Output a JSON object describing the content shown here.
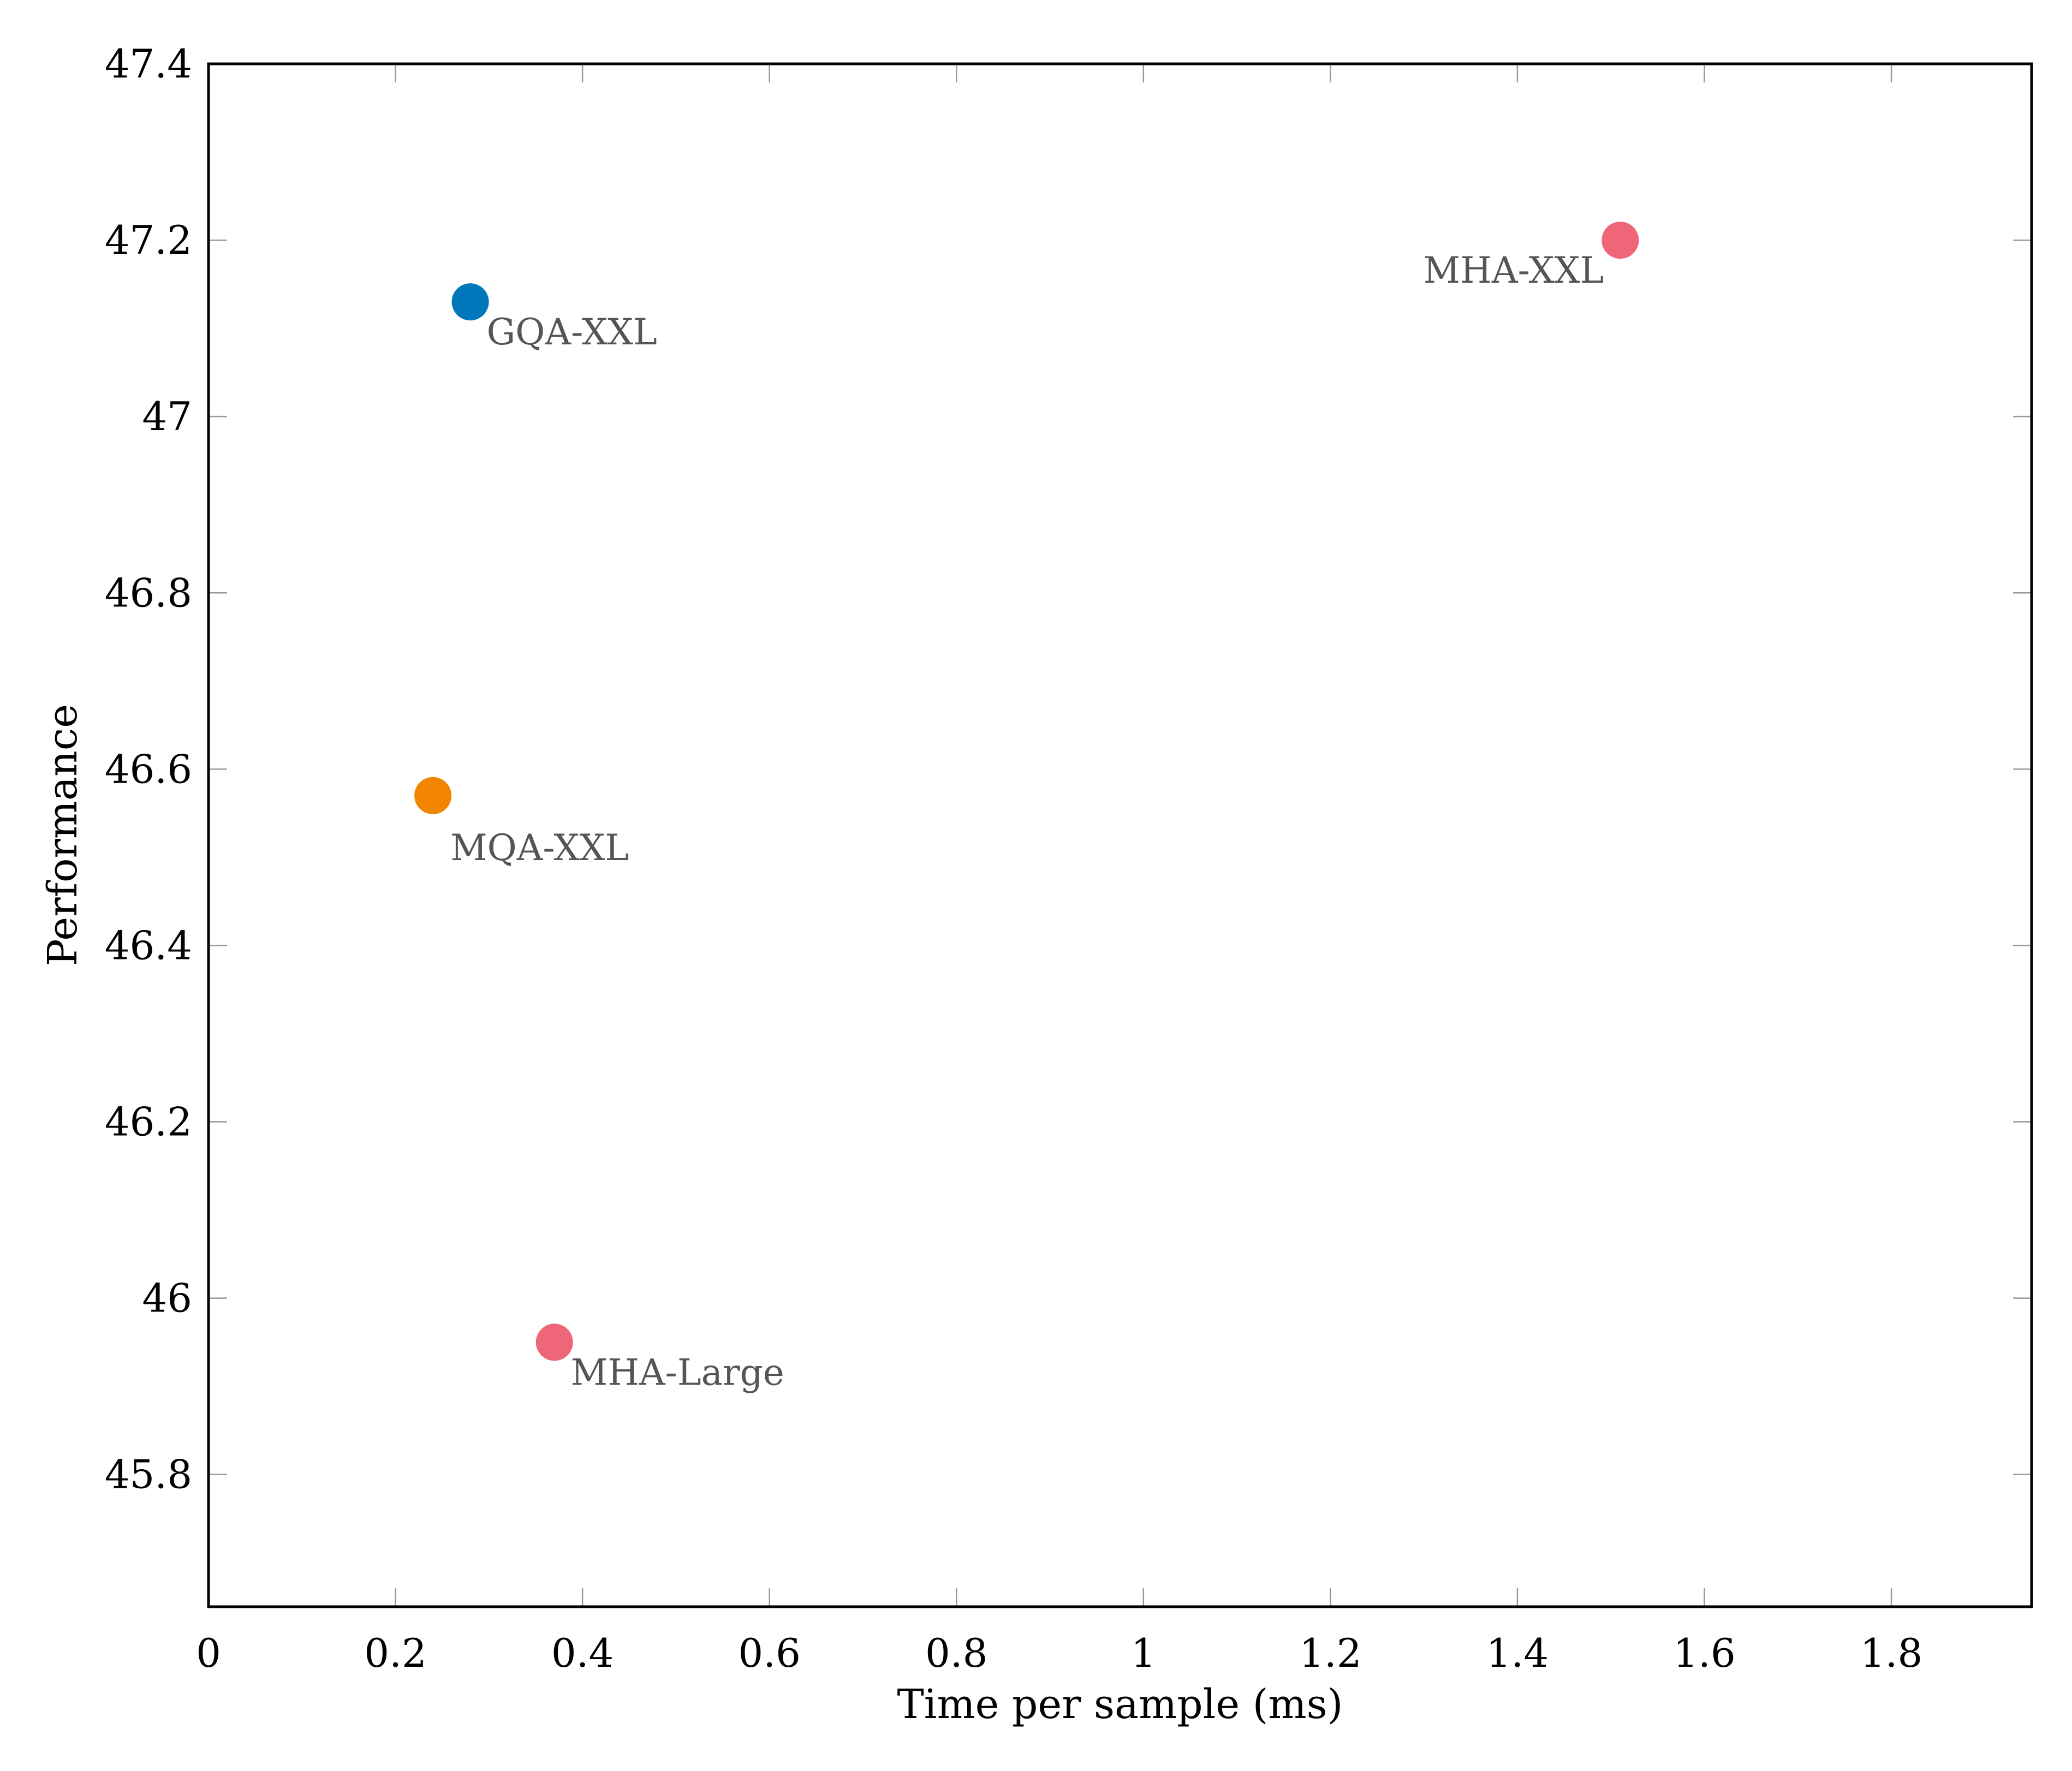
{
  "chart_data": {
    "type": "scatter",
    "title": "",
    "xlabel": "Time per sample (ms)",
    "ylabel": "Performance",
    "xlim": [
      0,
      1.95
    ],
    "ylim": [
      45.65,
      47.4
    ],
    "xticks": [
      0,
      0.2,
      0.4,
      0.6,
      0.8,
      1,
      1.2,
      1.4,
      1.6,
      1.8
    ],
    "xtick_labels": [
      "0",
      "0.2",
      "0.4",
      "0.6",
      "0.8",
      "1",
      "1.2",
      "1.4",
      "1.6",
      "1.8"
    ],
    "yticks": [
      45.8,
      46,
      46.2,
      46.4,
      46.6,
      46.8,
      47,
      47.2,
      47.4
    ],
    "ytick_labels": [
      "45.8",
      "46",
      "46.2",
      "46.4",
      "46.6",
      "46.8",
      "47",
      "47.2",
      "47.4"
    ],
    "grid": false,
    "legend": null,
    "points": [
      {
        "label": "MHA-XXL",
        "x": 1.51,
        "y": 47.2,
        "color": "#EE6677",
        "label_pos": "below-left"
      },
      {
        "label": "GQA-XXL",
        "x": 0.28,
        "y": 47.13,
        "color": "#0077BB",
        "label_pos": "below-right"
      },
      {
        "label": "MQA-XXL",
        "x": 0.24,
        "y": 46.57,
        "color": "#EE7733",
        "label_pos": "below-right"
      },
      {
        "label": "MHA-Large",
        "x": 0.37,
        "y": 45.95,
        "color": "#EE6677",
        "label_pos": "below-right"
      }
    ]
  },
  "colors": {
    "mha": "#EE6677",
    "gqa": "#0077BB",
    "mqa": "#F28500",
    "label_text": "#555555",
    "axis": "#000000",
    "tick": "#999999"
  }
}
